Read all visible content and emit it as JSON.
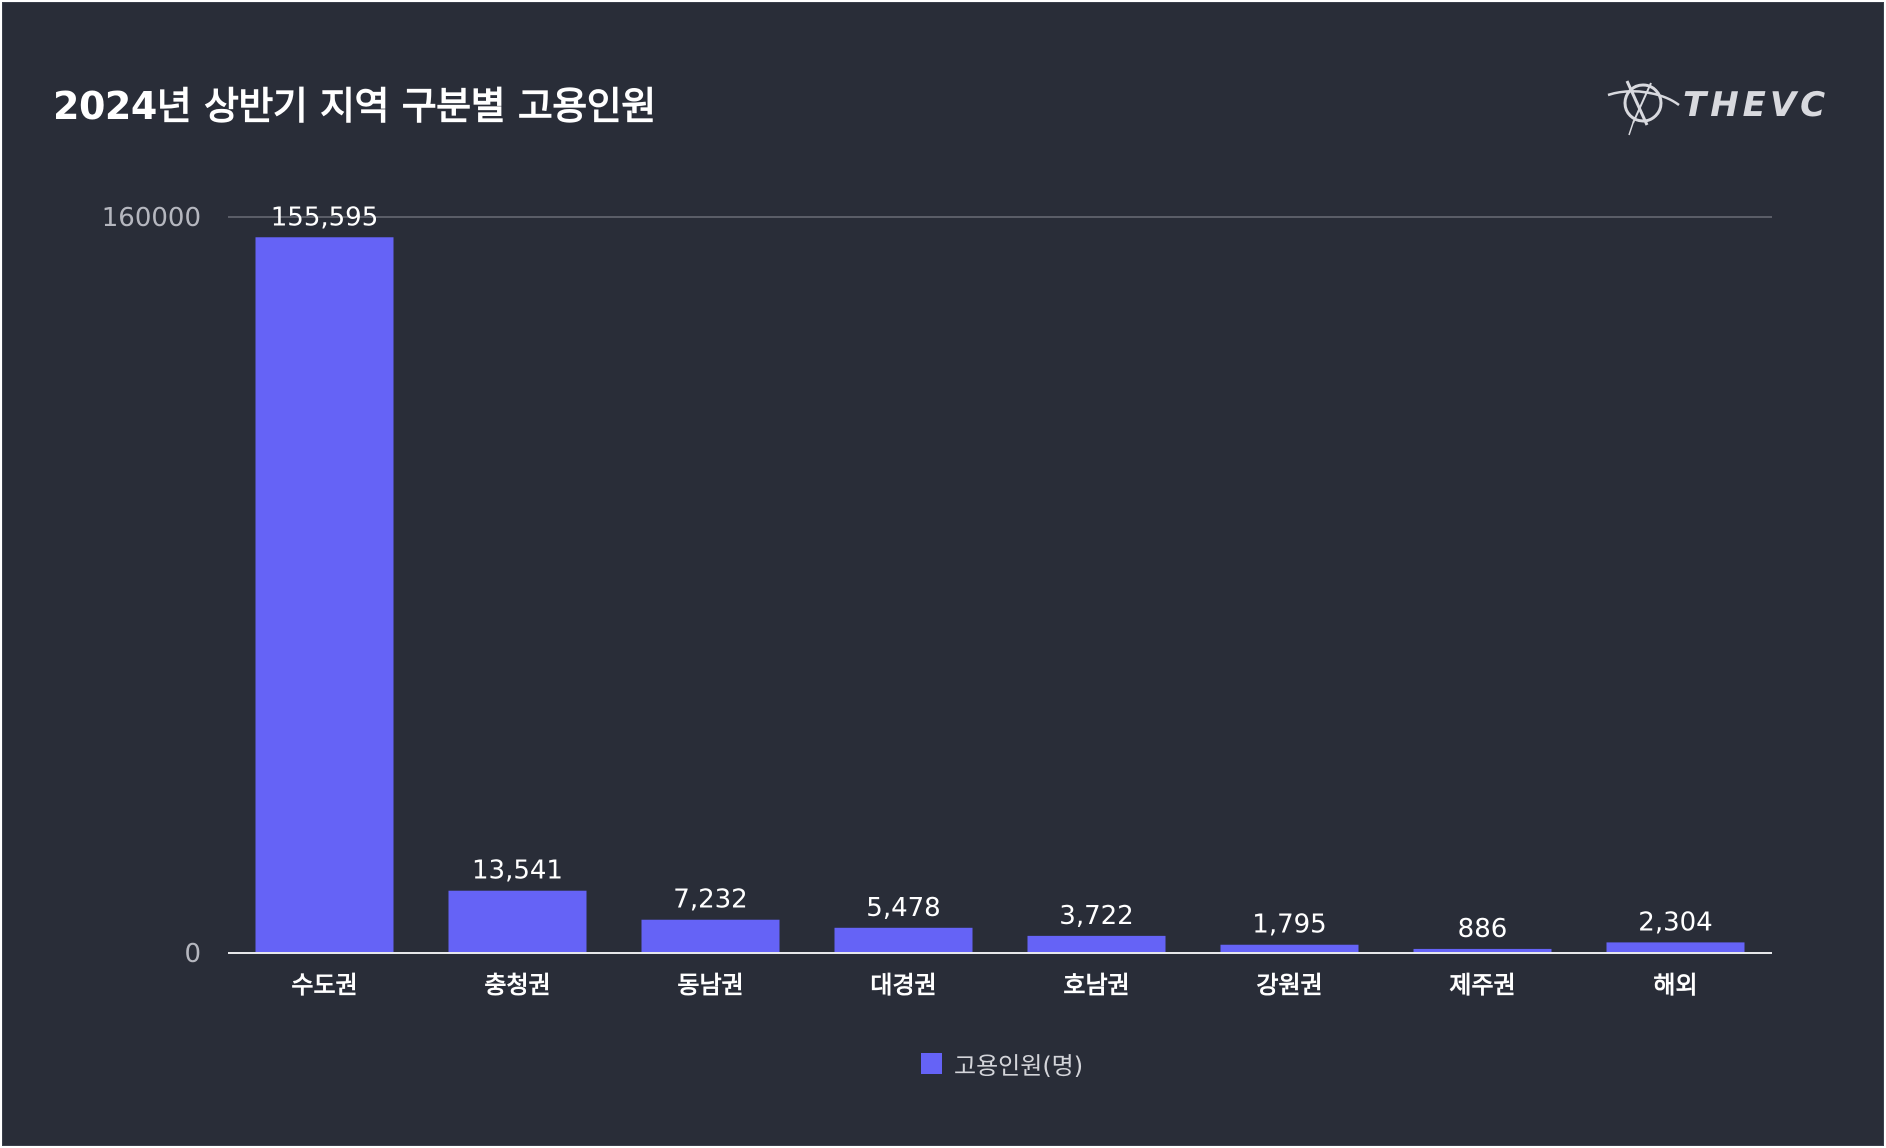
{
  "title": "2024년 상반기 지역 구분별 고용인원",
  "brand": {
    "name": "THEVC",
    "icon": "orbit-logo-icon"
  },
  "colors": {
    "background": "#292d38",
    "bar": "#6563f6",
    "text": "#ffffff",
    "axis_text": "#b5b7bf",
    "grid": "#8a8d96"
  },
  "chart_data": {
    "type": "bar",
    "categories": [
      "수도권",
      "충청권",
      "동남권",
      "대경권",
      "호남권",
      "강원권",
      "제주권",
      "해외"
    ],
    "series": [
      {
        "name": "고용인원(명)",
        "values": [
          155595,
          13541,
          7232,
          5478,
          3722,
          1795,
          886,
          2304
        ],
        "labels": [
          "155,595",
          "13,541",
          "7,232",
          "5,478",
          "3,722",
          "1,795",
          "886",
          "2,304"
        ]
      }
    ],
    "ylim": [
      0,
      160000
    ],
    "yticks": [
      "0",
      "160000"
    ],
    "grid": true,
    "legend": "bottom-center"
  }
}
